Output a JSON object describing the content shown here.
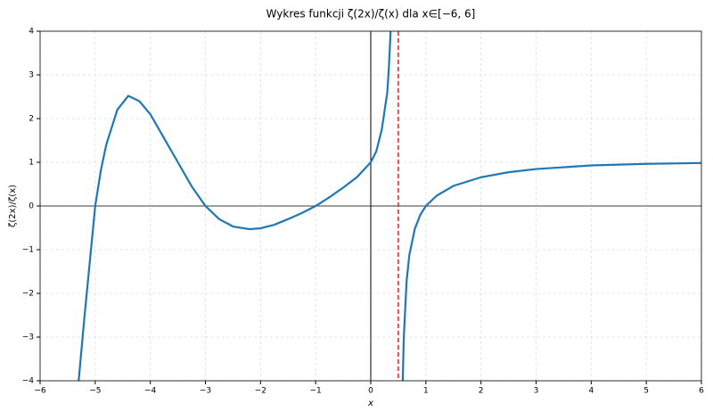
{
  "chart_data": {
    "type": "line",
    "title": "Wykres funkcji ζ(2x)/ζ(x) dla x∈[−6, 6]",
    "xlabel": "x",
    "ylabel": "ζ(2x)/ζ(x)",
    "x": [
      -5.3,
      -5.2,
      -5.1,
      -5.0,
      -4.9,
      -4.8,
      -4.6,
      -4.4,
      -4.2,
      -4.0,
      -3.75,
      -3.5,
      -3.25,
      -3.0,
      -2.75,
      -2.5,
      -2.2,
      -2.0,
      -1.75,
      -1.5,
      -1.25,
      -1.0,
      -0.75,
      -0.5,
      -0.25,
      0.0,
      0.1,
      0.2,
      0.3,
      0.33,
      0.36,
      0.45,
      0.58,
      0.6,
      0.65,
      0.7,
      0.8,
      0.9,
      1.0,
      1.2,
      1.5,
      2.0,
      2.5,
      3.0,
      4.0,
      5.0,
      6.0
    ],
    "series": [
      {
        "color": "#1f77b4",
        "values": [
          -4.0,
          -2.6,
          -1.3,
          0.0,
          0.8,
          1.4,
          2.2,
          2.52,
          2.4,
          2.1,
          1.55,
          1.0,
          0.45,
          0.0,
          -0.3,
          -0.47,
          -0.53,
          -0.51,
          -0.43,
          -0.3,
          -0.16,
          0.0,
          0.2,
          0.42,
          0.66,
          1.0,
          1.25,
          1.75,
          2.6,
          3.2,
          4.0,
          null,
          -4.0,
          -3.0,
          -1.72,
          -1.12,
          -0.52,
          -0.2,
          0.0,
          0.24,
          0.46,
          0.658,
          0.773,
          0.846,
          0.928,
          0.965,
          0.983
        ]
      }
    ],
    "asymptote": {
      "x": 0.5,
      "color": "#d62728"
    },
    "xlim": [
      -6,
      6
    ],
    "ylim": [
      -4,
      4
    ],
    "xticks": [
      {
        "value": -6,
        "label": "−6"
      },
      {
        "value": -5,
        "label": "−5"
      },
      {
        "value": -4,
        "label": "−4"
      },
      {
        "value": -3,
        "label": "−3"
      },
      {
        "value": -2,
        "label": "−2"
      },
      {
        "value": -1,
        "label": "−1"
      },
      0,
      1,
      2,
      3,
      4,
      5,
      6
    ],
    "yticks": [
      {
        "value": -4,
        "label": "−4"
      },
      {
        "value": -3,
        "label": "−3"
      },
      {
        "value": -2,
        "label": "−2"
      },
      {
        "value": -1,
        "label": "−1"
      },
      0,
      1,
      2,
      3,
      4
    ],
    "grid": true
  }
}
